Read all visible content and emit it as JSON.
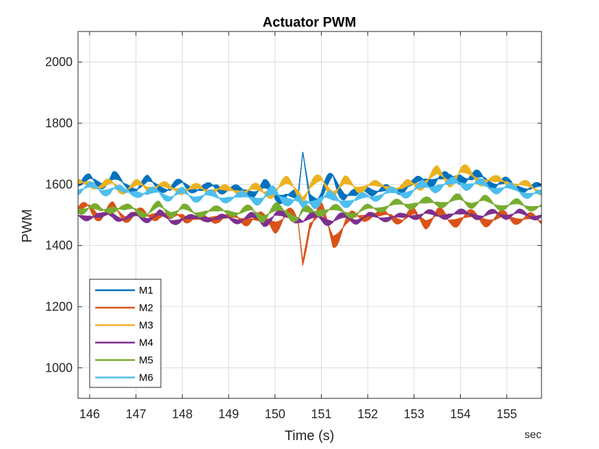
{
  "chart_data": {
    "type": "line",
    "title": "Actuator PWM",
    "xlabel": "Time (s)",
    "ylabel": "PWM",
    "x_unit_label": "sec",
    "xlim": [
      145.75,
      155.75
    ],
    "ylim": [
      900,
      2100
    ],
    "xticks": [
      146,
      147,
      148,
      149,
      150,
      151,
      152,
      153,
      154,
      155
    ],
    "yticks": [
      1000,
      1200,
      1400,
      1600,
      1800,
      2000
    ],
    "grid": true,
    "legend_position": "bottom-left",
    "colors": {
      "M1": "#0072BD",
      "M2": "#D95319",
      "M3": "#EDB120",
      "M4": "#7E2F8E",
      "M5": "#77AC30",
      "M6": "#4DBEEE"
    },
    "series": [
      {
        "name": "M1",
        "color": "#0072BD",
        "x": [
          145.75,
          146.0,
          146.25,
          146.5,
          146.75,
          147.0,
          147.25,
          147.5,
          147.75,
          148.0,
          148.25,
          148.5,
          148.75,
          149.0,
          149.25,
          149.5,
          149.75,
          150.0,
          150.25,
          150.5,
          150.6,
          150.75,
          151.0,
          151.25,
          151.5,
          151.75,
          152.0,
          152.25,
          152.5,
          152.75,
          153.0,
          153.25,
          153.5,
          153.75,
          154.0,
          154.25,
          154.5,
          154.75,
          155.0,
          155.25,
          155.5,
          155.75
        ],
        "center": [
          1600,
          1612,
          1605,
          1620,
          1598,
          1590,
          1605,
          1595,
          1585,
          1600,
          1590,
          1580,
          1595,
          1585,
          1575,
          1580,
          1590,
          1560,
          1575,
          1545,
          1700,
          1570,
          1555,
          1620,
          1575,
          1560,
          1590,
          1580,
          1575,
          1595,
          1600,
          1615,
          1625,
          1610,
          1635,
          1615,
          1620,
          1605,
          1600,
          1595,
          1585,
          1592
        ],
        "amp": [
          18,
          25,
          20,
          30,
          15,
          22,
          25,
          18,
          20,
          24,
          18,
          22,
          25,
          18,
          20,
          25,
          30,
          35,
          25,
          30,
          20,
          30,
          35,
          45,
          30,
          22,
          25,
          20,
          22,
          25,
          20,
          25,
          30,
          25,
          35,
          28,
          30,
          25,
          22,
          20,
          18,
          15
        ]
      },
      {
        "name": "M2",
        "color": "#D95319",
        "x": [
          145.75,
          146.0,
          146.25,
          146.5,
          146.75,
          147.0,
          147.25,
          147.5,
          147.75,
          148.0,
          148.25,
          148.5,
          148.75,
          149.0,
          149.25,
          149.5,
          149.75,
          150.0,
          150.25,
          150.5,
          150.6,
          150.75,
          151.0,
          151.25,
          151.5,
          151.75,
          152.0,
          152.25,
          152.5,
          152.75,
          153.0,
          153.25,
          153.5,
          153.75,
          154.0,
          154.25,
          154.5,
          154.75,
          155.0,
          155.25,
          155.5,
          155.75
        ],
        "center": [
          1510,
          1525,
          1500,
          1515,
          1495,
          1505,
          1490,
          1515,
          1485,
          1500,
          1490,
          1480,
          1500,
          1490,
          1485,
          1495,
          1470,
          1480,
          1500,
          1470,
          1350,
          1480,
          1500,
          1430,
          1470,
          1490,
          1505,
          1495,
          1500,
          1485,
          1500,
          1485,
          1500,
          1480,
          1495,
          1490,
          1490,
          1485,
          1495,
          1490,
          1485,
          1480
        ],
        "amp": [
          20,
          30,
          25,
          28,
          20,
          25,
          22,
          28,
          20,
          24,
          18,
          22,
          25,
          20,
          22,
          28,
          35,
          40,
          30,
          35,
          20,
          35,
          40,
          45,
          35,
          25,
          22,
          18,
          22,
          20,
          25,
          30,
          28,
          25,
          30,
          25,
          28,
          22,
          25,
          20,
          22,
          18
        ]
      },
      {
        "name": "M3",
        "color": "#EDB120",
        "x": [
          145.75,
          146.0,
          146.25,
          146.5,
          146.75,
          147.0,
          147.25,
          147.5,
          147.75,
          148.0,
          148.25,
          148.5,
          148.75,
          149.0,
          149.25,
          149.5,
          149.75,
          150.0,
          150.25,
          150.5,
          150.6,
          150.75,
          151.0,
          151.25,
          151.5,
          151.75,
          152.0,
          152.25,
          152.5,
          152.75,
          153.0,
          153.25,
          153.5,
          153.75,
          154.0,
          154.25,
          154.5,
          154.75,
          155.0,
          155.25,
          155.5,
          155.75
        ],
        "center": [
          1595,
          1610,
          1590,
          1600,
          1585,
          1595,
          1590,
          1600,
          1580,
          1590,
          1585,
          1580,
          1590,
          1575,
          1580,
          1585,
          1570,
          1590,
          1600,
          1580,
          1560,
          1590,
          1610,
          1580,
          1600,
          1590,
          1600,
          1590,
          1595,
          1585,
          1600,
          1615,
          1630,
          1615,
          1640,
          1625,
          1620,
          1605,
          1610,
          1600,
          1590,
          1580
        ],
        "amp": [
          22,
          18,
          20,
          22,
          18,
          20,
          22,
          20,
          18,
          22,
          18,
          20,
          22,
          18,
          20,
          22,
          25,
          30,
          25,
          30,
          20,
          30,
          25,
          30,
          28,
          22,
          20,
          18,
          20,
          22,
          25,
          28,
          30,
          25,
          30,
          28,
          25,
          22,
          20,
          18,
          18,
          15
        ]
      },
      {
        "name": "M4",
        "color": "#7E2F8E",
        "x": [
          145.75,
          146.0,
          146.25,
          146.5,
          146.75,
          147.0,
          147.25,
          147.5,
          147.75,
          148.0,
          148.25,
          148.5,
          148.75,
          149.0,
          149.25,
          149.5,
          149.75,
          150.0,
          150.25,
          150.5,
          150.6,
          150.75,
          151.0,
          151.25,
          151.5,
          151.75,
          152.0,
          152.25,
          152.5,
          152.75,
          153.0,
          153.25,
          153.5,
          153.75,
          154.0,
          154.25,
          154.5,
          154.75,
          155.0,
          155.25,
          155.5,
          155.75
        ],
        "center": [
          1495,
          1500,
          1490,
          1505,
          1485,
          1495,
          1490,
          1500,
          1480,
          1490,
          1485,
          1495,
          1485,
          1490,
          1485,
          1490,
          1480,
          1500,
          1490,
          1495,
          1480,
          1485,
          1495,
          1480,
          1490,
          1485,
          1495,
          1490,
          1495,
          1490,
          1500,
          1505,
          1495,
          1505,
          1500,
          1505,
          1495,
          1505,
          1500,
          1505,
          1495,
          1500
        ],
        "amp": [
          15,
          18,
          15,
          18,
          15,
          16,
          15,
          18,
          15,
          16,
          14,
          16,
          15,
          14,
          15,
          18,
          20,
          22,
          18,
          20,
          15,
          20,
          22,
          20,
          18,
          15,
          14,
          14,
          15,
          14,
          15,
          16,
          15,
          16,
          18,
          15,
          16,
          15,
          14,
          15,
          14,
          12
        ]
      },
      {
        "name": "M5",
        "color": "#77AC30",
        "x": [
          145.75,
          146.0,
          146.25,
          146.5,
          146.75,
          147.0,
          147.25,
          147.5,
          147.75,
          148.0,
          148.25,
          148.5,
          148.75,
          149.0,
          149.25,
          149.5,
          149.75,
          150.0,
          150.25,
          150.5,
          150.6,
          150.75,
          151.0,
          151.25,
          151.5,
          151.75,
          152.0,
          152.25,
          152.5,
          152.75,
          153.0,
          153.25,
          153.5,
          153.75,
          154.0,
          154.25,
          154.5,
          154.75,
          155.0,
          155.25,
          155.5,
          155.75
        ],
        "center": [
          1520,
          1525,
          1510,
          1530,
          1515,
          1520,
          1505,
          1525,
          1510,
          1520,
          1505,
          1515,
          1510,
          1515,
          1505,
          1515,
          1500,
          1510,
          1515,
          1490,
          1510,
          1505,
          1520,
          1515,
          1510,
          1505,
          1520,
          1525,
          1530,
          1535,
          1540,
          1535,
          1545,
          1540,
          1550,
          1540,
          1545,
          1535,
          1530,
          1535,
          1530,
          1525
        ],
        "amp": [
          18,
          20,
          18,
          22,
          18,
          20,
          18,
          22,
          18,
          20,
          16,
          18,
          18,
          16,
          18,
          22,
          25,
          28,
          22,
          25,
          18,
          25,
          22,
          20,
          18,
          15,
          15,
          15,
          18,
          18,
          20,
          22,
          20,
          18,
          22,
          18,
          20,
          18,
          16,
          18,
          16,
          15
        ]
      },
      {
        "name": "M6",
        "color": "#4DBEEE",
        "x": [
          145.75,
          146.0,
          146.25,
          146.5,
          146.75,
          147.0,
          147.25,
          147.5,
          147.75,
          148.0,
          148.25,
          148.5,
          148.75,
          149.0,
          149.25,
          149.5,
          149.75,
          150.0,
          150.25,
          150.5,
          150.6,
          150.75,
          151.0,
          151.25,
          151.5,
          151.75,
          152.0,
          152.25,
          152.5,
          152.75,
          153.0,
          153.25,
          153.5,
          153.75,
          154.0,
          154.25,
          154.5,
          154.75,
          155.0,
          155.25,
          155.5,
          155.75
        ],
        "center": [
          1585,
          1590,
          1580,
          1590,
          1570,
          1580,
          1565,
          1575,
          1560,
          1570,
          1560,
          1565,
          1555,
          1560,
          1555,
          1560,
          1555,
          1565,
          1560,
          1540,
          1520,
          1545,
          1560,
          1545,
          1550,
          1545,
          1560,
          1565,
          1570,
          1575,
          1580,
          1590,
          1600,
          1595,
          1610,
          1600,
          1595,
          1590,
          1585,
          1580,
          1570,
          1565
        ],
        "amp": [
          20,
          18,
          20,
          22,
          18,
          20,
          22,
          20,
          18,
          20,
          18,
          20,
          22,
          18,
          20,
          22,
          28,
          32,
          28,
          30,
          20,
          30,
          32,
          28,
          25,
          20,
          18,
          18,
          20,
          20,
          22,
          25,
          25,
          22,
          25,
          22,
          22,
          20,
          20,
          18,
          18,
          15
        ]
      }
    ]
  }
}
